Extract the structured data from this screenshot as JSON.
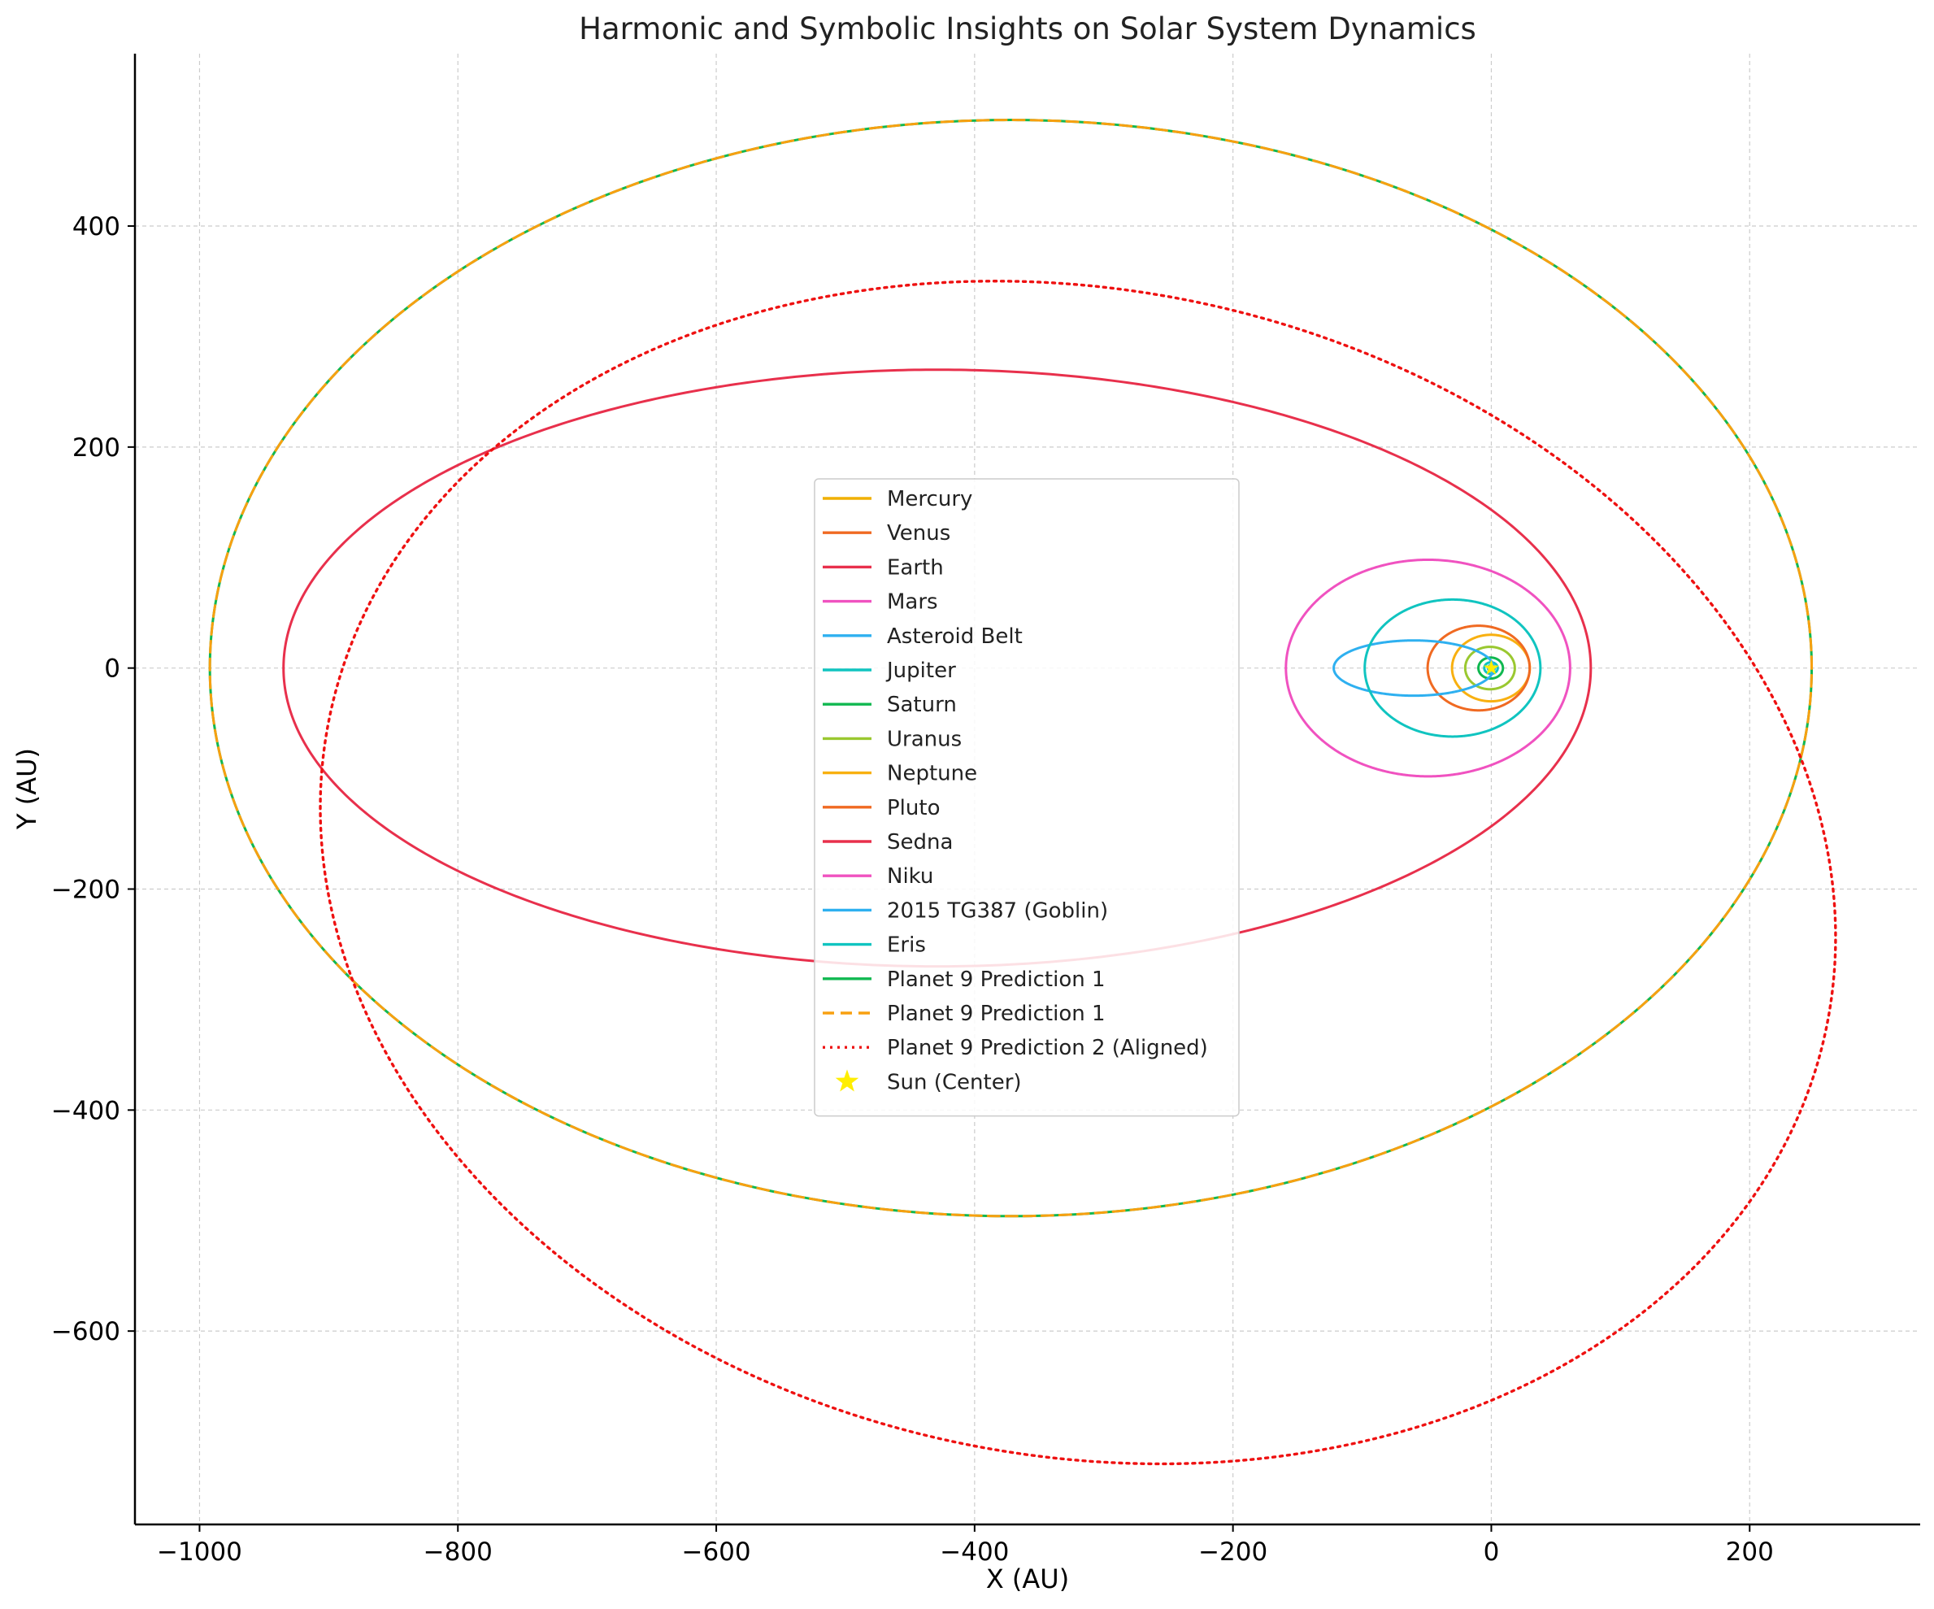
{
  "chart_data": {
    "type": "line",
    "title": "Harmonic and Symbolic Insights on Solar System Dynamics",
    "xlabel": "X (AU)",
    "ylabel": "Y (AU)",
    "xlim": [
      -1050,
      332
    ],
    "ylim": [
      -775,
      556
    ],
    "xticks": [
      -1000,
      -800,
      -600,
      -400,
      -200,
      0,
      200
    ],
    "yticks": [
      -600,
      -400,
      -200,
      0,
      200,
      400
    ],
    "grid": true,
    "legend_position": "center",
    "series": [
      {
        "name": "Mercury",
        "color": "#f0b000",
        "dash": "solid",
        "center": [
          -0.08,
          0
        ],
        "a": 0.39,
        "b": 0.38
      },
      {
        "name": "Venus",
        "color": "#f06a22",
        "dash": "solid",
        "center": [
          0,
          0
        ],
        "a": 0.72,
        "b": 0.72
      },
      {
        "name": "Earth",
        "color": "#e8304c",
        "dash": "solid",
        "center": [
          -0.02,
          0
        ],
        "a": 1.0,
        "b": 1.0
      },
      {
        "name": "Mars",
        "color": "#f052c0",
        "dash": "solid",
        "center": [
          -0.14,
          0
        ],
        "a": 1.52,
        "b": 1.51
      },
      {
        "name": "Asteroid Belt",
        "color": "#2eb0f0",
        "dash": "solid",
        "center": [
          0,
          0
        ],
        "a": 2.7,
        "b": 2.7
      },
      {
        "name": "Jupiter",
        "color": "#10c4c0",
        "dash": "solid",
        "center": [
          -0.25,
          0
        ],
        "a": 5.2,
        "b": 5.19
      },
      {
        "name": "Saturn",
        "color": "#10b850",
        "dash": "solid",
        "center": [
          -0.5,
          0
        ],
        "a": 9.5,
        "b": 9.5
      },
      {
        "name": "Uranus",
        "color": "#9ac830",
        "dash": "solid",
        "center": [
          -1,
          0
        ],
        "a": 19.2,
        "b": 19.2
      },
      {
        "name": "Neptune",
        "color": "#f8b010",
        "dash": "solid",
        "center": [
          -0.3,
          0
        ],
        "a": 30.1,
        "b": 30.1
      },
      {
        "name": "Pluto",
        "color": "#f06a22",
        "dash": "solid",
        "center": [
          -9.8,
          0
        ],
        "a": 39.5,
        "b": 38.3
      },
      {
        "name": "Sedna",
        "color": "#e8304c",
        "dash": "solid",
        "center": [
          -429,
          0
        ],
        "a": 506,
        "b": 270
      },
      {
        "name": "Niku",
        "color": "#f052c0",
        "dash": "solid",
        "center": [
          -49,
          0
        ],
        "a": 110,
        "b": 98
      },
      {
        "name": "2015 TG387 (Goblin)",
        "color": "#2eb0f0",
        "dash": "solid",
        "center": [
          -60,
          0
        ],
        "a": 62,
        "b": 25
      },
      {
        "name": "Eris",
        "color": "#10c4c0",
        "dash": "solid",
        "center": [
          -30,
          0
        ],
        "a": 68,
        "b": 62
      },
      {
        "name": "Planet 9 Prediction 1",
        "color": "#10b850",
        "dash": "solid",
        "center": [
          -372,
          0
        ],
        "a": 620,
        "b": 496
      },
      {
        "name": "Planet 9 Prediction 1",
        "color": "#f8a010",
        "dash": "dashed",
        "center": [
          -372,
          0
        ],
        "a": 620,
        "b": 496
      },
      {
        "name": "Planet 9 Prediction 2 (Aligned)",
        "color": "#ee1111",
        "dash": "dotted",
        "center": [
          -320,
          -185
        ],
        "a": 600,
        "b": 520,
        "rotation_deg": -25
      }
    ],
    "points": [
      {
        "name": "Sun (Center)",
        "x": 0,
        "y": 0,
        "color": "#ffee00",
        "marker": "star"
      }
    ]
  }
}
